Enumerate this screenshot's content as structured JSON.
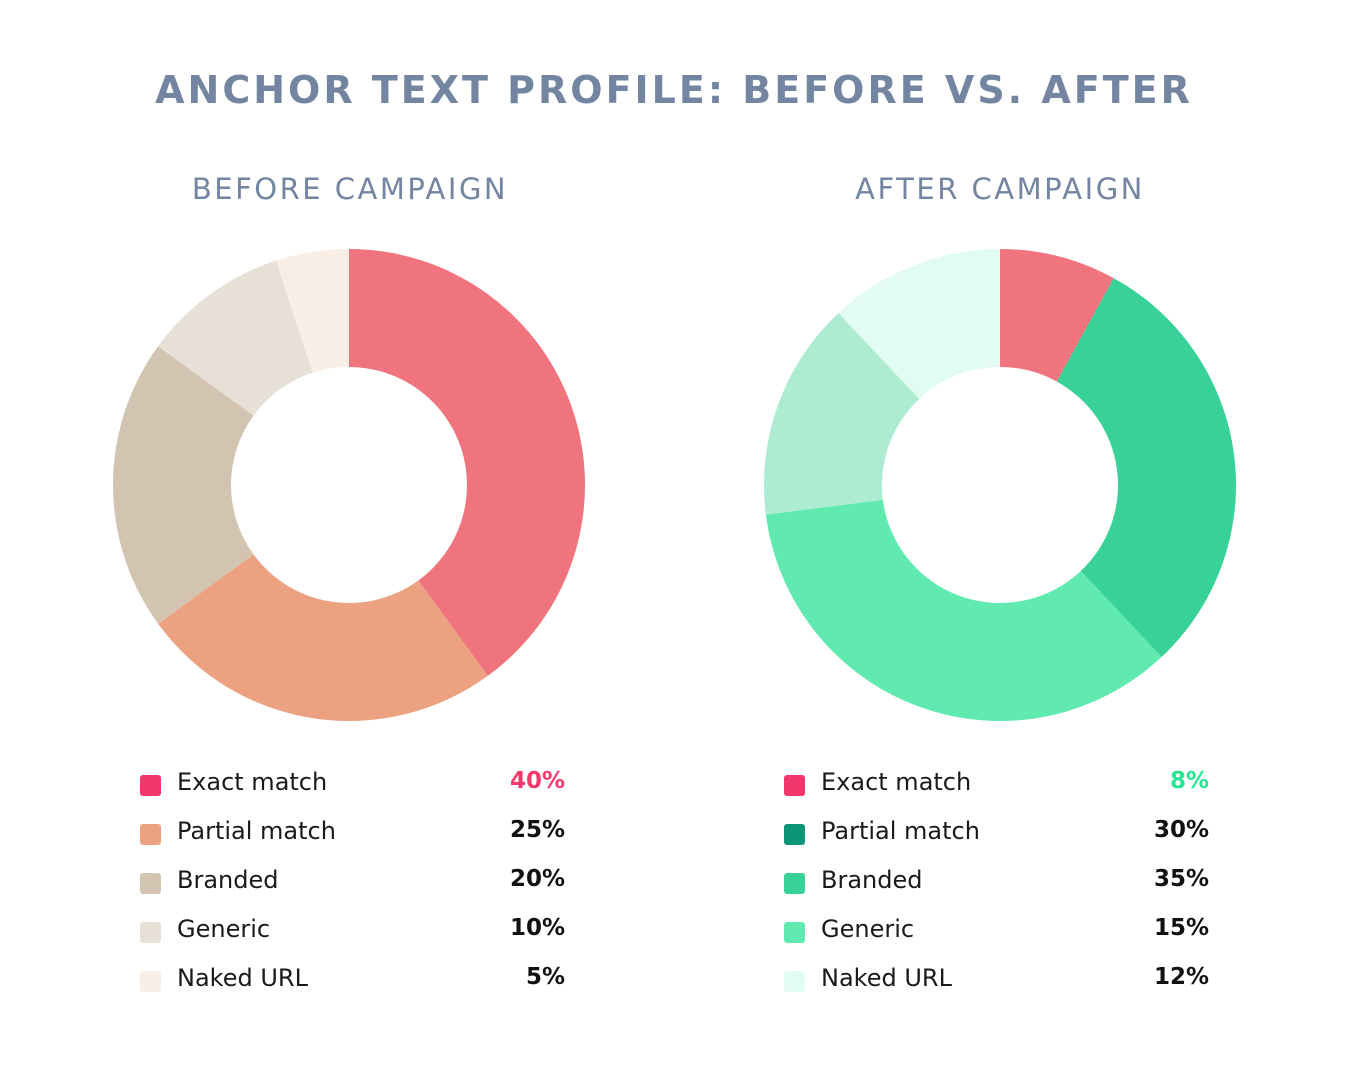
{
  "title": "ANCHOR TEXT PROFILE: BEFORE VS. AFTER",
  "chart_data": [
    {
      "type": "pie",
      "title": "BEFORE CAMPAIGN",
      "categories": [
        "Exact match",
        "Partial match",
        "Branded",
        "Generic",
        "Naked URL"
      ],
      "values": [
        40,
        25,
        20,
        10,
        5
      ],
      "value_labels": [
        "40%",
        "25%",
        "20%",
        "10%",
        "5%"
      ],
      "slice_colors": [
        "#f0747d",
        "#eca181",
        "#d3c4b1",
        "#e7e0d7",
        "#f8eee6"
      ],
      "legend_colors": [
        "#f4376a",
        "#eca181",
        "#d3c4b1",
        "#e7e0d7",
        "#f8eee6"
      ],
      "highlight_color": "#f4376a",
      "legend_position": "bottom"
    },
    {
      "type": "pie",
      "title": "AFTER CAMPAIGN",
      "categories": [
        "Exact match",
        "Partial match",
        "Branded",
        "Generic",
        "Naked URL"
      ],
      "values": [
        8,
        30,
        35,
        15,
        12
      ],
      "value_labels": [
        "8%",
        "30%",
        "35%",
        "15%",
        "12%"
      ],
      "slice_colors": [
        "#f0747d",
        "#38d198",
        "#60eab0",
        "#aeebd3",
        "#e3fcf1"
      ],
      "legend_colors": [
        "#f4376a",
        "#0c9579",
        "#38d198",
        "#60eab0",
        "#e3fcf1"
      ],
      "highlight_color": "#26e592",
      "legend_position": "bottom"
    }
  ]
}
